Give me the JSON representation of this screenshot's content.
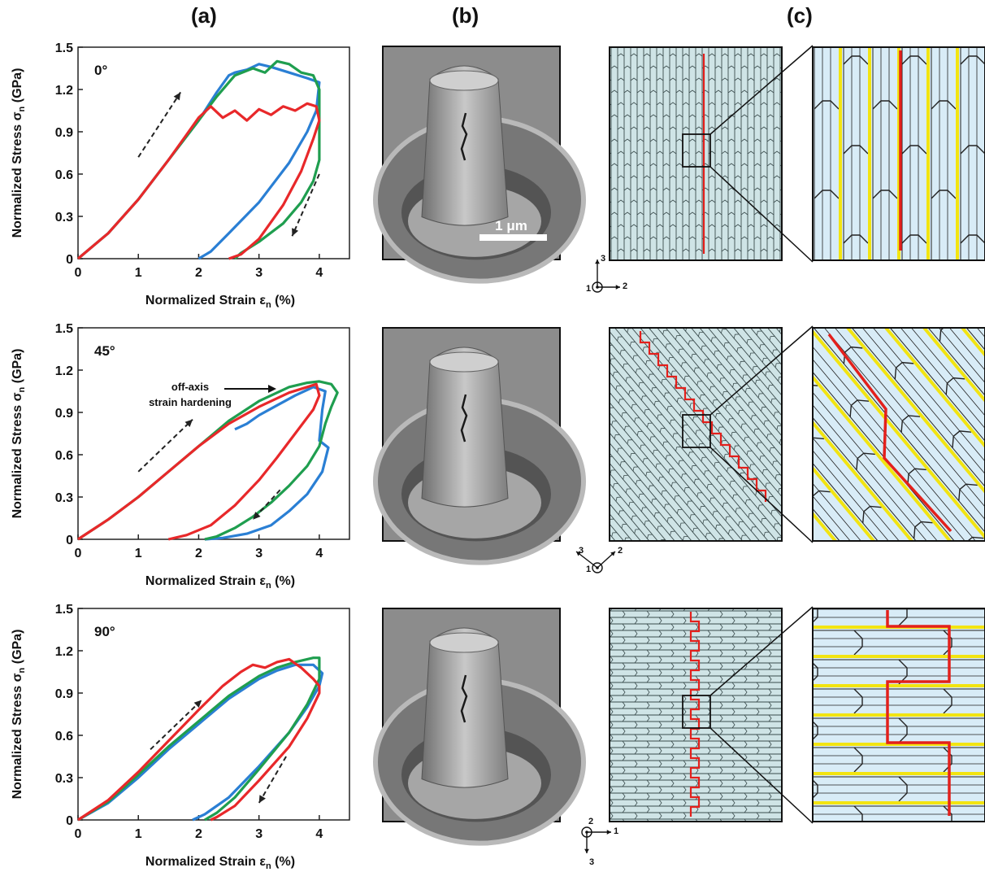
{
  "figure": {
    "col_labels": [
      "(a)",
      "(b)",
      "(c)"
    ],
    "scalebar": "1 μm",
    "annotation": "off-axis\nstrain hardening",
    "colors": {
      "red": "#e8282a",
      "blue": "#2a7fd4",
      "green": "#1f9e4f",
      "sem_bg": "#9a9a9a",
      "pattern_bg": "#cfe4e6",
      "zoom_fill": "#d8ecf7",
      "zoom_yellow": "#f2e411",
      "crack": "#e3201c"
    },
    "coordinate_systems": [
      {
        "axes": [
          "3",
          "2",
          "1"
        ]
      },
      {
        "axes": [
          "3",
          "2",
          "1"
        ]
      },
      {
        "axes": [
          "1",
          "3",
          "2"
        ]
      }
    ]
  },
  "chart_data": [
    {
      "type": "line",
      "panel_label": "0°",
      "xlabel": "Normalized Strain εn (%)",
      "ylabel": "Normalized Stress σn (GPa)",
      "xlim": [
        0,
        4.5
      ],
      "ylim": [
        0,
        1.5
      ],
      "xticks": [
        "0",
        "1",
        "2",
        "3",
        "4"
      ],
      "yticks": [
        "0",
        "0.3",
        "0.6",
        "0.9",
        "1.2",
        "1.5"
      ],
      "series": [
        {
          "color": "#2a7fd4",
          "x": [
            0,
            0.5,
            1,
            1.5,
            2,
            2.3,
            2.5,
            2.6,
            2.8,
            3.0,
            3.2,
            3.5,
            3.8,
            4.0,
            3.95,
            3.8,
            3.5,
            3.0,
            2.5,
            2.2,
            2.0
          ],
          "y": [
            0,
            0.18,
            0.42,
            0.7,
            0.98,
            1.18,
            1.3,
            1.32,
            1.34,
            1.38,
            1.36,
            1.32,
            1.28,
            1.25,
            1.05,
            0.9,
            0.68,
            0.4,
            0.18,
            0.05,
            0
          ]
        },
        {
          "color": "#1f9e4f",
          "x": [
            0,
            0.5,
            1,
            1.5,
            2,
            2.3,
            2.6,
            2.9,
            3.1,
            3.3,
            3.5,
            3.7,
            3.9,
            4.0,
            4.0,
            3.9,
            3.7,
            3.4,
            3.0,
            2.7,
            2.6
          ],
          "y": [
            0,
            0.18,
            0.42,
            0.7,
            0.98,
            1.15,
            1.3,
            1.35,
            1.32,
            1.4,
            1.38,
            1.32,
            1.3,
            1.2,
            0.7,
            0.55,
            0.4,
            0.25,
            0.12,
            0.04,
            0
          ]
        },
        {
          "color": "#e8282a",
          "x": [
            0,
            0.5,
            1,
            1.5,
            1.8,
            2.0,
            2.2,
            2.4,
            2.6,
            2.8,
            3.0,
            3.2,
            3.4,
            3.6,
            3.8,
            3.95,
            4.0,
            3.9,
            3.7,
            3.4,
            3.0,
            2.7,
            2.5
          ],
          "y": [
            0,
            0.18,
            0.42,
            0.7,
            0.88,
            1.0,
            1.08,
            1.0,
            1.05,
            0.98,
            1.06,
            1.02,
            1.08,
            1.05,
            1.1,
            1.08,
            0.98,
            0.85,
            0.62,
            0.38,
            0.14,
            0.03,
            0
          ]
        }
      ]
    },
    {
      "type": "line",
      "panel_label": "45°",
      "xlabel": "Normalized Strain εn (%)",
      "ylabel": "Normalized Stress σn (GPa)",
      "xlim": [
        0,
        4.5
      ],
      "ylim": [
        0,
        1.5
      ],
      "xticks": [
        "0",
        "1",
        "2",
        "3",
        "4"
      ],
      "yticks": [
        "0",
        "0.3",
        "0.6",
        "0.9",
        "1.2",
        "1.5"
      ],
      "series": [
        {
          "color": "#2a7fd4",
          "x": [
            2.6,
            2.8,
            3.0,
            3.3,
            3.6,
            3.9,
            4.1,
            4.05,
            4.0,
            4.15,
            4.05,
            3.8,
            3.5,
            3.2,
            2.8,
            2.4,
            2.1
          ],
          "y": [
            0.78,
            0.82,
            0.88,
            0.95,
            1.02,
            1.08,
            1.05,
            0.92,
            0.7,
            0.65,
            0.48,
            0.32,
            0.2,
            0.1,
            0.04,
            0.01,
            0
          ]
        },
        {
          "color": "#1f9e4f",
          "x": [
            0,
            0.5,
            1,
            1.5,
            2,
            2.5,
            3.0,
            3.5,
            3.8,
            4.0,
            4.2,
            4.3,
            4.2,
            4.1,
            4.0,
            3.8,
            3.5,
            3.2,
            2.9,
            2.6,
            2.3,
            2.1
          ],
          "y": [
            0,
            0.14,
            0.3,
            0.48,
            0.66,
            0.84,
            0.98,
            1.08,
            1.11,
            1.12,
            1.1,
            1.04,
            0.94,
            0.82,
            0.66,
            0.52,
            0.38,
            0.26,
            0.16,
            0.08,
            0.02,
            0
          ]
        },
        {
          "color": "#e8282a",
          "x": [
            0,
            0.5,
            1,
            1.5,
            2,
            2.5,
            3.0,
            3.5,
            3.8,
            3.95,
            4.0,
            3.9,
            3.6,
            3.3,
            3.0,
            2.6,
            2.2,
            1.8,
            1.5
          ],
          "y": [
            0,
            0.14,
            0.3,
            0.48,
            0.66,
            0.82,
            0.94,
            1.04,
            1.08,
            1.1,
            1.02,
            0.92,
            0.75,
            0.58,
            0.42,
            0.24,
            0.1,
            0.03,
            0
          ]
        }
      ]
    },
    {
      "type": "line",
      "panel_label": "90°",
      "xlabel": "Normalized Strain εn (%)",
      "ylabel": "Normalized Stress σn (GPa)",
      "xlim": [
        0,
        4.5
      ],
      "ylim": [
        0,
        1.5
      ],
      "xticks": [
        "0",
        "1",
        "2",
        "3",
        "4"
      ],
      "yticks": [
        "0",
        "0.3",
        "0.6",
        "0.9",
        "1.2",
        "1.5"
      ],
      "series": [
        {
          "color": "#2a7fd4",
          "x": [
            0,
            0.5,
            1,
            1.5,
            2,
            2.5,
            3.0,
            3.3,
            3.6,
            3.9,
            4.05,
            4.0,
            3.8,
            3.5,
            3.0,
            2.5,
            2.1,
            1.9
          ],
          "y": [
            0,
            0.12,
            0.3,
            0.5,
            0.68,
            0.86,
            1.0,
            1.06,
            1.1,
            1.1,
            1.04,
            0.95,
            0.8,
            0.62,
            0.38,
            0.16,
            0.04,
            0
          ]
        },
        {
          "color": "#1f9e4f",
          "x": [
            0,
            0.5,
            1,
            1.5,
            2,
            2.5,
            3.0,
            3.3,
            3.6,
            3.9,
            4.0,
            4.0,
            3.8,
            3.5,
            3.0,
            2.6,
            2.3,
            2.1
          ],
          "y": [
            0,
            0.13,
            0.32,
            0.52,
            0.7,
            0.88,
            1.02,
            1.08,
            1.12,
            1.15,
            1.15,
            1.0,
            0.82,
            0.62,
            0.36,
            0.16,
            0.05,
            0
          ]
        },
        {
          "color": "#e8282a",
          "x": [
            0,
            0.5,
            1,
            1.5,
            2,
            2.4,
            2.7,
            2.9,
            3.1,
            3.3,
            3.5,
            3.7,
            3.9,
            4.0,
            4.0,
            3.8,
            3.5,
            3.0,
            2.6,
            2.3,
            2.2
          ],
          "y": [
            0,
            0.14,
            0.34,
            0.56,
            0.78,
            0.95,
            1.05,
            1.1,
            1.08,
            1.12,
            1.14,
            1.08,
            1.0,
            0.95,
            0.9,
            0.72,
            0.52,
            0.28,
            0.1,
            0.02,
            0
          ]
        }
      ]
    }
  ]
}
